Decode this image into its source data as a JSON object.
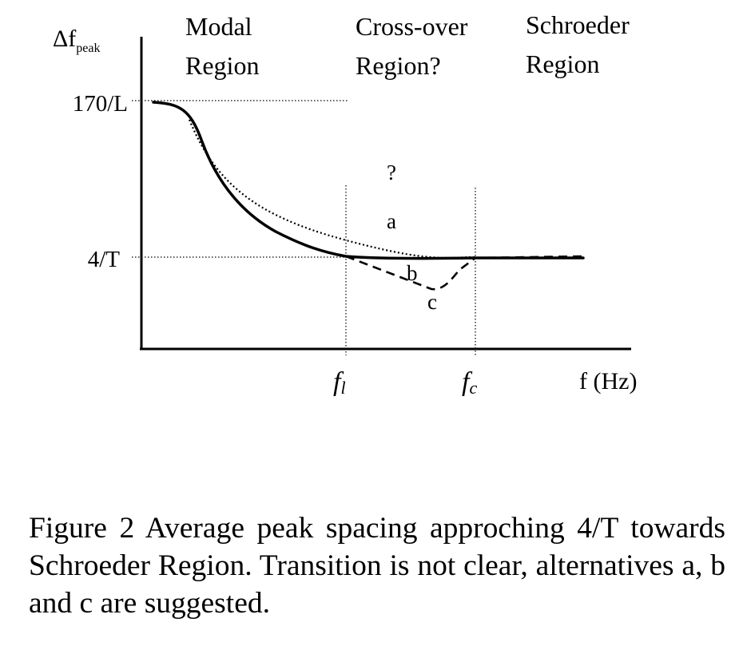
{
  "figure": {
    "y_axis": {
      "label_main": "Δf",
      "label_sub": "peak",
      "ticks": [
        "170/L",
        "4/T"
      ]
    },
    "x_axis": {
      "label": "f (Hz)",
      "ticks": [
        {
          "main": "f",
          "sub": "l"
        },
        {
          "main": "f",
          "sub": "c"
        }
      ]
    },
    "regions": [
      {
        "line1": "Modal",
        "line2": "Region"
      },
      {
        "line1": "Cross-over",
        "line2": "Region?"
      },
      {
        "line1": "Schroeder",
        "line2": "Region"
      }
    ],
    "curve_labels": {
      "question": "?",
      "a": "a",
      "b": "b",
      "c": "c"
    },
    "colors": {
      "ink": "#000000",
      "background": "#ffffff"
    }
  },
  "caption": "Figure 2 Average peak spacing approching 4/T towards Schroeder Region. Transition is not clear, alternatives a, b and c are suggested."
}
